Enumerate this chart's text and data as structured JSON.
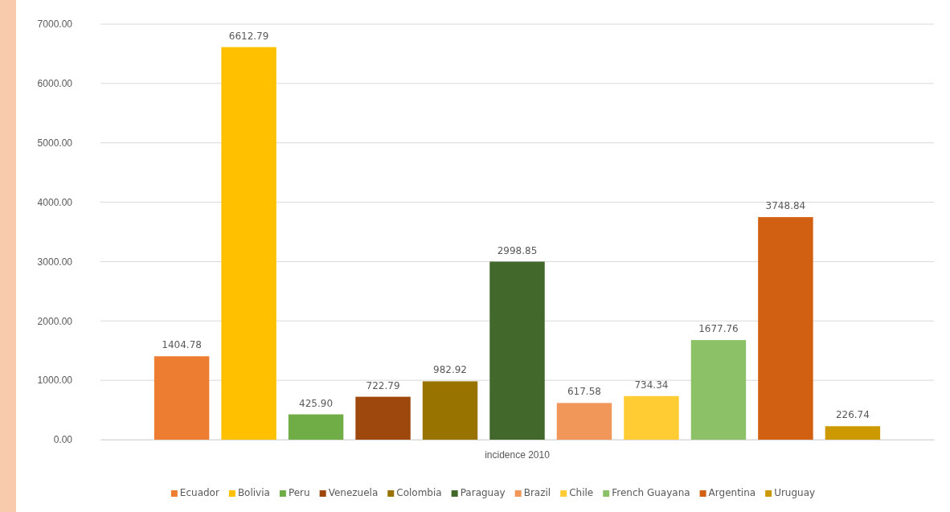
{
  "chart_data": {
    "type": "bar",
    "categories": [
      "incidence 2010"
    ],
    "ylim": [
      0,
      7000
    ],
    "yticks": [
      {
        "value": 0,
        "label": "0.00"
      },
      {
        "value": 1000,
        "label": "1000.00"
      },
      {
        "value": 2000,
        "label": "2000.00"
      },
      {
        "value": 3000,
        "label": "3000.00"
      },
      {
        "value": 4000,
        "label": "4000.00"
      },
      {
        "value": 5000,
        "label": "5000.00"
      },
      {
        "value": 6000,
        "label": "6000.00"
      },
      {
        "value": 7000,
        "label": "7000.00"
      }
    ],
    "grid": "y",
    "legend": "bottom",
    "series": [
      {
        "name": "Ecuador",
        "color": "#ed7d31",
        "values": [
          1404.78
        ],
        "value_labels": [
          "1404.78"
        ]
      },
      {
        "name": "Bolivia",
        "color": "#ffc000",
        "values": [
          6612.79
        ],
        "value_labels": [
          "6612.79"
        ]
      },
      {
        "name": "Peru",
        "color": "#70ad47",
        "values": [
          425.9
        ],
        "value_labels": [
          "425.90"
        ]
      },
      {
        "name": "Venezuela",
        "color": "#9e480e",
        "values": [
          722.79
        ],
        "value_labels": [
          "722.79"
        ]
      },
      {
        "name": "Colombia",
        "color": "#997300",
        "values": [
          982.92
        ],
        "value_labels": [
          "982.92"
        ]
      },
      {
        "name": "Paraguay",
        "color": "#43682b",
        "values": [
          2998.85
        ],
        "value_labels": [
          "2998.85"
        ]
      },
      {
        "name": "Brazil",
        "color": "#f1975a",
        "values": [
          617.58
        ],
        "value_labels": [
          "617.58"
        ]
      },
      {
        "name": "Chile",
        "color": "#ffcd33",
        "values": [
          734.34
        ],
        "value_labels": [
          "734.34"
        ]
      },
      {
        "name": "French Guayana",
        "color": "#8cc168",
        "values": [
          1677.76
        ],
        "value_labels": [
          "1677.76"
        ]
      },
      {
        "name": "Argentina",
        "color": "#d26012",
        "values": [
          3748.84
        ],
        "value_labels": [
          "3748.84"
        ]
      },
      {
        "name": "Uruguay",
        "color": "#cc9a00",
        "values": [
          226.74
        ],
        "value_labels": [
          "226.74"
        ]
      }
    ]
  }
}
